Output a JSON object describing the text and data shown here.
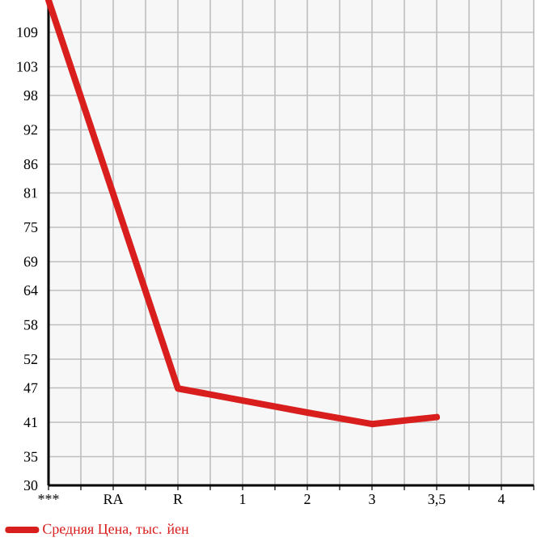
{
  "chart_data": {
    "type": "line",
    "categories": [
      "***",
      "RA",
      "R",
      "1",
      "2",
      "3",
      "3,5",
      "4"
    ],
    "series": [
      {
        "name": "Средняя Цена, тыс. йен",
        "color": "#d91e1e",
        "values": [
          114.6,
          80.8,
          46.9,
          44.8,
          42.7,
          40.7,
          41.9,
          null
        ]
      }
    ],
    "ylim": [
      30,
      114.64
    ],
    "yticks": [
      30,
      35,
      41,
      47,
      52,
      58,
      64,
      69,
      75,
      81,
      86,
      92,
      98,
      103,
      109
    ],
    "grid": true,
    "legend": "bottom",
    "marker": "none",
    "line_style": "solid"
  }
}
